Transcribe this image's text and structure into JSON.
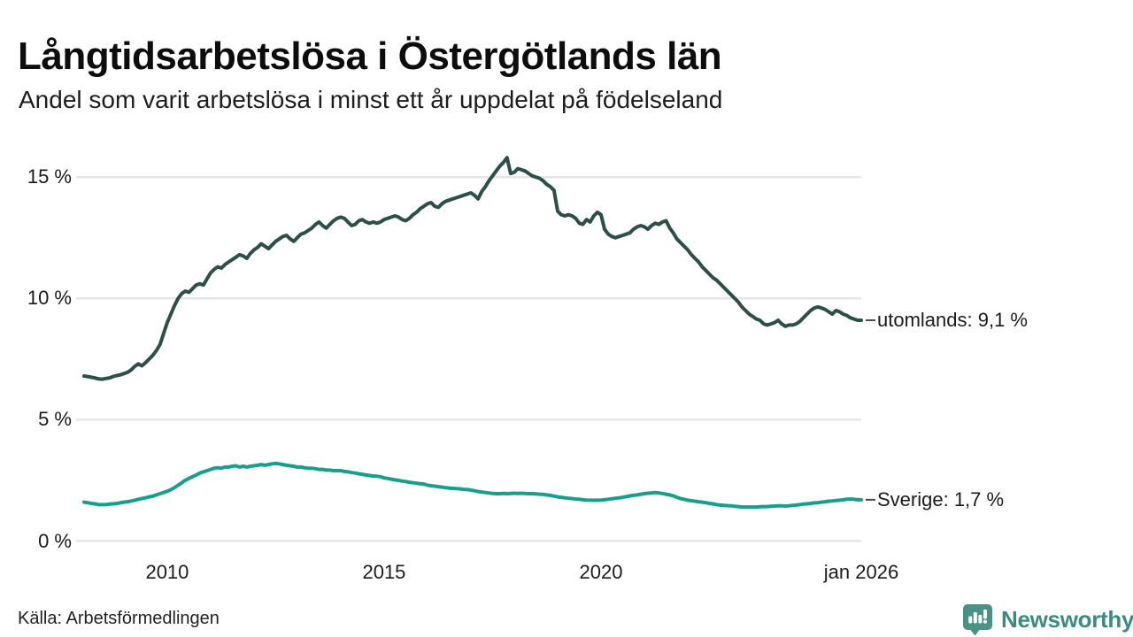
{
  "header": {
    "title": "Långtidsarbetslösa i Östergötlands län",
    "subtitle": "Andel som varit arbetslösa i minst ett år uppdelat på födelseland"
  },
  "footer": {
    "source": "Källa: Arbetsförmedlingen",
    "logo_text": "Newsworthy"
  },
  "colors": {
    "series_abroad": "#2e4f47",
    "series_sweden": "#1a9e8c",
    "grid": "#e6e6ea",
    "connector": "#4a4a4a",
    "logo_teal": "#4a9286",
    "logo_text_teal": "#3d8b7f",
    "text": "#1b1b1b"
  },
  "chart_data": {
    "type": "line",
    "title": "Långtidsarbetslösa i Östergötlands län",
    "subtitle": "Andel som varit arbetslösa i minst ett år uppdelat på födelseland",
    "grid": true,
    "legend_position": "end-of-line",
    "unit": "%",
    "x_axis": {
      "range": [
        2008.083,
        2026.0
      ],
      "ticks": [
        {
          "t": 2010,
          "label": "2010"
        },
        {
          "t": 2015,
          "label": "2015"
        },
        {
          "t": 2020,
          "label": "2020"
        },
        {
          "t": 2026.0,
          "label": "jan 2026"
        }
      ]
    },
    "y_axis": {
      "range": [
        0,
        16.1
      ],
      "ticks": [
        {
          "v": 0,
          "label": "0 %"
        },
        {
          "v": 5,
          "label": "5 %"
        },
        {
          "v": 10,
          "label": "10 %"
        },
        {
          "v": 15,
          "label": "15 %"
        }
      ]
    },
    "series": [
      {
        "name": "utomlands",
        "end_label": "utomlands: 9,1 %",
        "last_value": 9.1,
        "color": "#2e4f47",
        "start_year": 2008.083,
        "step_months": 1,
        "values": [
          6.8,
          6.78,
          6.75,
          6.72,
          6.68,
          6.67,
          6.7,
          6.72,
          6.78,
          6.82,
          6.85,
          6.9,
          6.95,
          7.05,
          7.2,
          7.3,
          7.22,
          7.35,
          7.5,
          7.65,
          7.85,
          8.1,
          8.55,
          9.0,
          9.35,
          9.7,
          10.0,
          10.2,
          10.3,
          10.25,
          10.4,
          10.55,
          10.6,
          10.55,
          10.8,
          11.05,
          11.2,
          11.3,
          11.25,
          11.4,
          11.5,
          11.6,
          11.7,
          11.8,
          11.75,
          11.65,
          11.85,
          12.0,
          12.1,
          12.25,
          12.15,
          12.05,
          12.2,
          12.35,
          12.45,
          12.55,
          12.6,
          12.45,
          12.35,
          12.5,
          12.65,
          12.7,
          12.8,
          12.9,
          13.05,
          13.15,
          13.0,
          12.9,
          13.05,
          13.2,
          13.3,
          13.35,
          13.3,
          13.15,
          13.0,
          13.05,
          13.2,
          13.25,
          13.15,
          13.1,
          13.15,
          13.1,
          13.15,
          13.25,
          13.3,
          13.35,
          13.4,
          13.35,
          13.25,
          13.2,
          13.3,
          13.45,
          13.55,
          13.7,
          13.8,
          13.9,
          13.95,
          13.8,
          13.75,
          13.9,
          14.0,
          14.05,
          14.1,
          14.15,
          14.2,
          14.25,
          14.3,
          14.35,
          14.25,
          14.1,
          14.4,
          14.6,
          14.85,
          15.05,
          15.25,
          15.45,
          15.6,
          15.8,
          15.15,
          15.2,
          15.35,
          15.3,
          15.25,
          15.15,
          15.05,
          15.0,
          14.95,
          14.85,
          14.7,
          14.6,
          14.45,
          13.6,
          13.45,
          13.4,
          13.45,
          13.4,
          13.3,
          13.1,
          13.05,
          13.25,
          13.15,
          13.4,
          13.55,
          13.45,
          12.85,
          12.65,
          12.55,
          12.5,
          12.55,
          12.6,
          12.65,
          12.7,
          12.85,
          12.95,
          13.0,
          12.95,
          12.85,
          13.0,
          13.1,
          13.05,
          13.15,
          13.2,
          12.9,
          12.7,
          12.45,
          12.3,
          12.15,
          12.0,
          11.8,
          11.65,
          11.5,
          11.3,
          11.15,
          11.0,
          10.85,
          10.75,
          10.6,
          10.45,
          10.3,
          10.15,
          10.0,
          9.85,
          9.65,
          9.5,
          9.35,
          9.25,
          9.15,
          9.1,
          8.95,
          8.9,
          8.95,
          9.0,
          9.1,
          8.95,
          8.85,
          8.9,
          8.9,
          8.95,
          9.05,
          9.2,
          9.35,
          9.5,
          9.6,
          9.65,
          9.6,
          9.55,
          9.45,
          9.35,
          9.5,
          9.45,
          9.35,
          9.3,
          9.2,
          9.15,
          9.1,
          9.1
        ]
      },
      {
        "name": "Sverige",
        "end_label": "Sverige: 1,7 %",
        "last_value": 1.7,
        "color": "#1a9e8c",
        "start_year": 2008.083,
        "step_months": 1,
        "values": [
          1.6,
          1.58,
          1.55,
          1.53,
          1.5,
          1.5,
          1.5,
          1.52,
          1.53,
          1.55,
          1.57,
          1.6,
          1.62,
          1.65,
          1.68,
          1.72,
          1.75,
          1.78,
          1.82,
          1.85,
          1.9,
          1.95,
          2.0,
          2.05,
          2.12,
          2.2,
          2.3,
          2.4,
          2.5,
          2.58,
          2.65,
          2.72,
          2.8,
          2.85,
          2.9,
          2.95,
          3.0,
          3.02,
          3.0,
          3.05,
          3.05,
          3.08,
          3.1,
          3.05,
          3.08,
          3.05,
          3.08,
          3.1,
          3.12,
          3.15,
          3.12,
          3.15,
          3.18,
          3.2,
          3.18,
          3.15,
          3.12,
          3.1,
          3.08,
          3.05,
          3.05,
          3.02,
          3.0,
          3.0,
          2.98,
          2.95,
          2.95,
          2.92,
          2.92,
          2.9,
          2.9,
          2.9,
          2.87,
          2.85,
          2.82,
          2.8,
          2.77,
          2.75,
          2.72,
          2.7,
          2.68,
          2.67,
          2.65,
          2.6,
          2.58,
          2.55,
          2.52,
          2.5,
          2.47,
          2.45,
          2.42,
          2.4,
          2.38,
          2.36,
          2.35,
          2.3,
          2.28,
          2.26,
          2.24,
          2.22,
          2.2,
          2.18,
          2.17,
          2.16,
          2.15,
          2.13,
          2.12,
          2.1,
          2.07,
          2.04,
          2.02,
          2.0,
          1.98,
          1.96,
          1.95,
          1.95,
          1.96,
          1.95,
          1.96,
          1.97,
          1.96,
          1.97,
          1.96,
          1.95,
          1.95,
          1.94,
          1.93,
          1.92,
          1.9,
          1.88,
          1.85,
          1.82,
          1.8,
          1.78,
          1.76,
          1.75,
          1.73,
          1.72,
          1.7,
          1.69,
          1.68,
          1.68,
          1.68,
          1.69,
          1.7,
          1.72,
          1.74,
          1.76,
          1.78,
          1.8,
          1.83,
          1.86,
          1.88,
          1.9,
          1.93,
          1.95,
          1.97,
          1.98,
          2.0,
          1.98,
          1.96,
          1.93,
          1.9,
          1.86,
          1.8,
          1.75,
          1.72,
          1.68,
          1.66,
          1.64,
          1.62,
          1.6,
          1.58,
          1.55,
          1.53,
          1.5,
          1.48,
          1.47,
          1.46,
          1.45,
          1.43,
          1.42,
          1.4,
          1.4,
          1.4,
          1.4,
          1.4,
          1.41,
          1.42,
          1.42,
          1.43,
          1.44,
          1.45,
          1.45,
          1.44,
          1.45,
          1.47,
          1.48,
          1.5,
          1.52,
          1.53,
          1.55,
          1.57,
          1.58,
          1.6,
          1.62,
          1.64,
          1.65,
          1.67,
          1.68,
          1.7,
          1.72,
          1.73,
          1.72,
          1.7,
          1.7
        ]
      }
    ]
  }
}
